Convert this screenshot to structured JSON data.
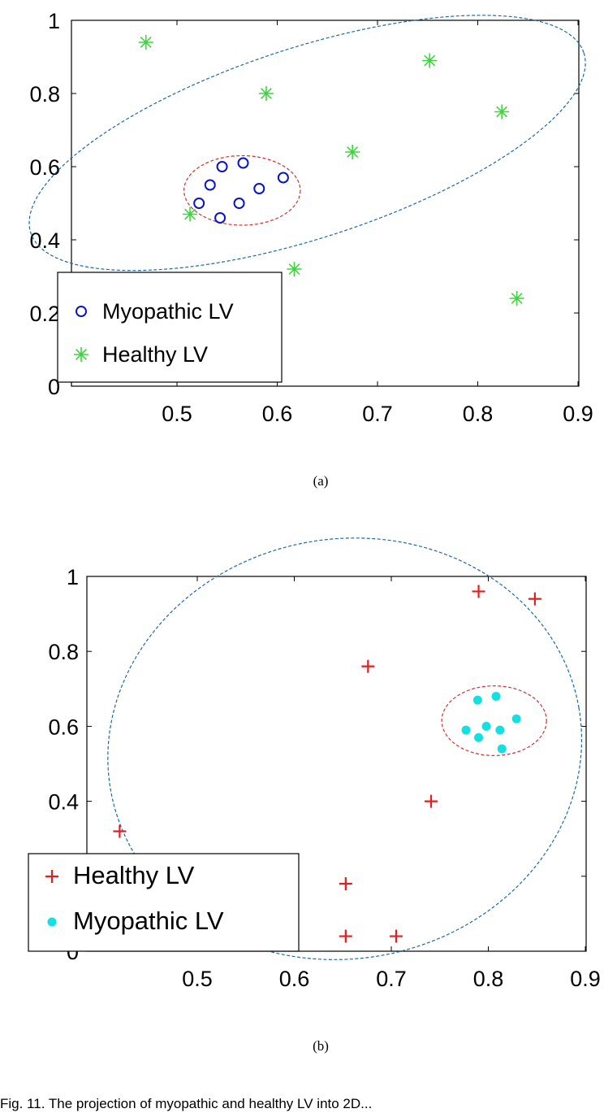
{
  "chart_data": [
    {
      "type": "scatter",
      "caption": "(a)",
      "xlim": [
        0.4,
        0.9
      ],
      "ylim": [
        0,
        1
      ],
      "grid": false,
      "legend_placement": "bottom-left",
      "x_ticks": [
        "0.5",
        "0.6",
        "0.7",
        "0.8",
        "0.9"
      ],
      "y_ticks": [
        "0",
        "0.2",
        "0.4",
        "0.6",
        "0.8",
        "1"
      ],
      "series": [
        {
          "name": "Myopathic LV",
          "marker": "circle-open",
          "color": "#0a14c8",
          "points": [
            [
              0.522,
              0.5
            ],
            [
              0.533,
              0.55
            ],
            [
              0.545,
              0.6
            ],
            [
              0.543,
              0.46
            ],
            [
              0.562,
              0.5
            ],
            [
              0.566,
              0.61
            ],
            [
              0.582,
              0.54
            ],
            [
              0.606,
              0.57
            ]
          ]
        },
        {
          "name": "Healthy LV",
          "marker": "asterisk",
          "color": "#3fd43f",
          "points": [
            [
              0.469,
              0.94
            ],
            [
              0.589,
              0.8
            ],
            [
              0.752,
              0.89
            ],
            [
              0.824,
              0.75
            ],
            [
              0.675,
              0.64
            ],
            [
              0.513,
              0.47
            ],
            [
              0.617,
              0.32
            ],
            [
              0.839,
              0.24
            ]
          ]
        }
      ],
      "ellipses": [
        {
          "color": "#d43030",
          "cx": 0.565,
          "cy": 0.535,
          "rx": 0.058,
          "ry": 0.095,
          "rot_deg": 0
        },
        {
          "color": "#1a6aa8",
          "cx": 0.63,
          "cy": 0.665,
          "rx": 0.29,
          "ry": 0.26,
          "rot_deg": -18
        }
      ]
    },
    {
      "type": "scatter",
      "caption": "(b)",
      "xlim": [
        0.41,
        0.9
      ],
      "ylim": [
        0,
        1
      ],
      "grid": false,
      "legend_placement": "bottom-left",
      "x_ticks": [
        "0.5",
        "0.6",
        "0.7",
        "0.8",
        "0.9"
      ],
      "y_ticks": [
        "0",
        "0.2",
        "0.4",
        "0.6",
        "0.8",
        "1"
      ],
      "series": [
        {
          "name": "Healthy LV",
          "marker": "plus",
          "color": "#e02020",
          "points": [
            [
              0.79,
              0.96
            ],
            [
              0.848,
              0.94
            ],
            [
              0.676,
              0.76
            ],
            [
              0.741,
              0.4
            ],
            [
              0.42,
              0.32
            ],
            [
              0.653,
              0.18
            ],
            [
              0.653,
              0.04
            ],
            [
              0.705,
              0.04
            ]
          ]
        },
        {
          "name": "Myopathic LV",
          "marker": "dot-filled",
          "color": "#13e0e0",
          "points": [
            [
              0.789,
              0.67
            ],
            [
              0.808,
              0.68
            ],
            [
              0.829,
              0.62
            ],
            [
              0.777,
              0.59
            ],
            [
              0.798,
              0.6
            ],
            [
              0.812,
              0.59
            ],
            [
              0.79,
              0.57
            ],
            [
              0.814,
              0.54
            ]
          ]
        }
      ],
      "ellipses": [
        {
          "color": "#d43030",
          "cx": 0.806,
          "cy": 0.615,
          "rx": 0.054,
          "ry": 0.093,
          "rot_deg": 0
        },
        {
          "color": "#1a6aa8",
          "cx": 0.652,
          "cy": 0.54,
          "rx": 0.245,
          "ry": 0.56,
          "rot_deg": -10
        }
      ]
    }
  ],
  "figure_caption": "Fig. 11.  The projection of myopathic and healthy LV into 2D..."
}
